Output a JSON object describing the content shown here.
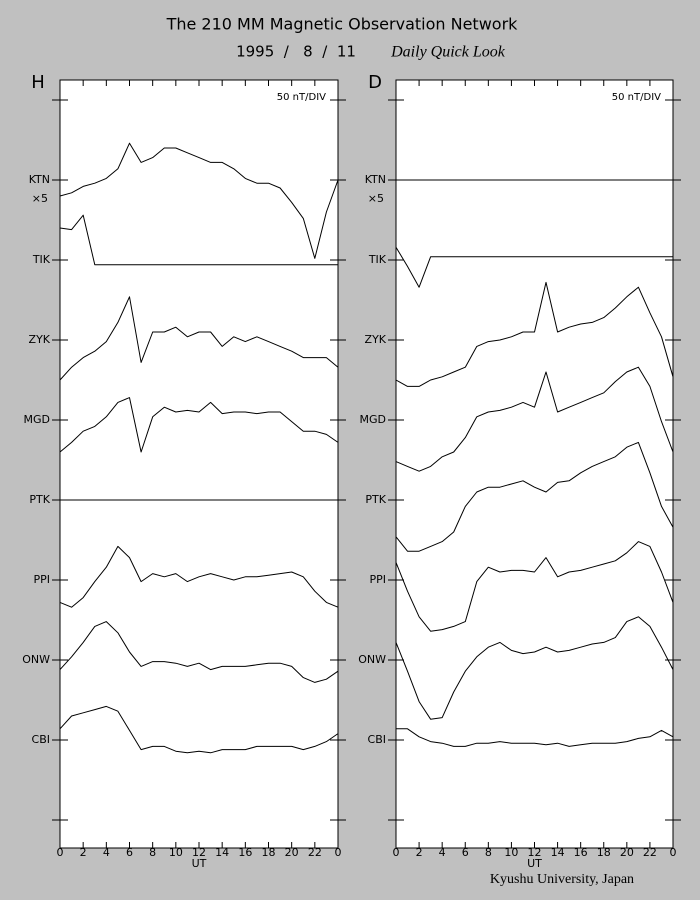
{
  "header": {
    "title": "The 210 MM Magnetic Observation Network",
    "date": "1995  /   8  /  11",
    "subtitle": "Daily Quick Look"
  },
  "footer": "Kyushu University, Japan",
  "chart_data": [
    {
      "type": "line",
      "panel": "H",
      "scale": "50 nT/DIV",
      "xlabel": "UT",
      "annotation": "×5",
      "x": [
        0,
        1,
        2,
        3,
        4,
        5,
        6,
        7,
        8,
        9,
        10,
        11,
        12,
        13,
        14,
        15,
        16,
        17,
        18,
        19,
        20,
        21,
        22,
        23,
        24
      ],
      "xlim": [
        0,
        24
      ],
      "xticks": [
        0,
        2,
        4,
        6,
        8,
        10,
        12,
        14,
        16,
        18,
        20,
        22,
        {
          "value": 24,
          "label": "0"
        }
      ],
      "ylim": [
        -17.5,
        462.5
      ],
      "yminor": [
        0,
        450
      ],
      "yticks": [
        {
          "value": 400,
          "label": "KTN"
        },
        {
          "value": 350,
          "label": "TIK"
        },
        {
          "value": 300,
          "label": "ZYK"
        },
        {
          "value": 250,
          "label": "MGD"
        },
        {
          "value": 200,
          "label": "PTK"
        },
        {
          "value": 150,
          "label": "PPI"
        },
        {
          "value": 100,
          "label": "ONW"
        },
        {
          "value": 50,
          "label": "CBI"
        }
      ],
      "series": [
        {
          "name": "KTN",
          "color": "#000000",
          "values": [
            -10,
            -8,
            -4,
            -2,
            1,
            7,
            23,
            11,
            14,
            20,
            20,
            17,
            14,
            11,
            11,
            7,
            1,
            -2,
            -2,
            -5,
            -14,
            -24,
            -49,
            -20,
            0
          ]
        },
        {
          "name": "TIK",
          "color": "#000000",
          "values": [
            20,
            19,
            28,
            -3,
            -3,
            -3,
            -3,
            -3,
            -3,
            -3,
            -3,
            -3,
            -3,
            -3,
            -3,
            -3,
            -3,
            -3,
            -3,
            -3,
            -3,
            -3,
            -3,
            -3,
            -3
          ]
        },
        {
          "name": "ZYK",
          "color": "#000000",
          "values": [
            -25,
            -17,
            -11,
            -7,
            -1,
            11,
            27,
            -14,
            5,
            5,
            8,
            2,
            5,
            5,
            -4,
            2,
            -1,
            2,
            -1,
            -4,
            -7,
            -11,
            -11,
            -11,
            -17
          ]
        },
        {
          "name": "MGD",
          "color": "#000000",
          "values": [
            -20,
            -14,
            -7,
            -4,
            2,
            11,
            14,
            -20,
            2,
            8,
            5,
            6,
            5,
            11,
            4,
            5,
            5,
            4,
            5,
            5,
            -1,
            -7,
            -7,
            -9,
            -14
          ]
        },
        {
          "name": "PTK",
          "color": "#000000",
          "values": [
            0,
            0,
            0,
            0,
            0,
            0,
            0,
            0,
            0,
            0,
            0,
            0,
            0,
            0,
            0,
            0,
            0,
            0,
            0,
            0,
            0,
            0,
            0,
            0,
            0
          ]
        },
        {
          "name": "PPI",
          "color": "#000000",
          "values": [
            -14,
            -17,
            -11,
            -1,
            8,
            21,
            14,
            -1,
            4,
            2,
            4,
            -1,
            2,
            4,
            2,
            0,
            2,
            2,
            3,
            4,
            5,
            2,
            -7,
            -14,
            -17
          ]
        },
        {
          "name": "ONW",
          "color": "#000000",
          "values": [
            -6,
            2,
            11,
            21,
            24,
            17,
            5,
            -4,
            -1,
            -1,
            -2,
            -4,
            -2,
            -6,
            -4,
            -4,
            -4,
            -3,
            -2,
            -2,
            -4,
            -11,
            -14,
            -12,
            -7
          ]
        },
        {
          "name": "CBI",
          "color": "#000000",
          "values": [
            7,
            15,
            17,
            19,
            21,
            18,
            6,
            -6,
            -4,
            -4,
            -7,
            -8,
            -7,
            -8,
            -6,
            -6,
            -6,
            -4,
            -4,
            -4,
            -4,
            -6,
            -4,
            -1,
            4
          ]
        }
      ]
    },
    {
      "type": "line",
      "panel": "D",
      "scale": "50 nT/DIV",
      "xlabel": "UT",
      "annotation": "×5",
      "x": [
        0,
        1,
        2,
        3,
        4,
        5,
        6,
        7,
        8,
        9,
        10,
        11,
        12,
        13,
        14,
        15,
        16,
        17,
        18,
        19,
        20,
        21,
        22,
        23,
        24
      ],
      "xlim": [
        0,
        24
      ],
      "xticks": [
        0,
        2,
        4,
        6,
        8,
        10,
        12,
        14,
        16,
        18,
        20,
        22,
        {
          "value": 24,
          "label": "0"
        }
      ],
      "ylim": [
        -17.5,
        462.5
      ],
      "yminor": [
        0,
        450
      ],
      "yticks": [
        {
          "value": 400,
          "label": "KTN"
        },
        {
          "value": 350,
          "label": "TIK"
        },
        {
          "value": 300,
          "label": "ZYK"
        },
        {
          "value": 250,
          "label": "MGD"
        },
        {
          "value": 200,
          "label": "PTK"
        },
        {
          "value": 150,
          "label": "PPI"
        },
        {
          "value": 100,
          "label": "ONW"
        },
        {
          "value": 50,
          "label": "CBI"
        }
      ],
      "series": [
        {
          "name": "KTN",
          "color": "#000000",
          "values": [
            0,
            0,
            0,
            0,
            0,
            0,
            0,
            0,
            0,
            0,
            0,
            0,
            0,
            0,
            0,
            0,
            0,
            0,
            0,
            0,
            0,
            0,
            0,
            0,
            0
          ]
        },
        {
          "name": "TIK",
          "color": "#000000",
          "values": [
            8,
            -4,
            -17,
            2,
            2,
            2,
            2,
            2,
            2,
            2,
            2,
            2,
            2,
            2,
            2,
            2,
            2,
            2,
            2,
            2,
            2,
            2,
            2,
            2,
            2
          ]
        },
        {
          "name": "ZYK",
          "color": "#000000",
          "values": [
            -25,
            -29,
            -29,
            -25,
            -23,
            -20,
            -17,
            -4,
            -1,
            0,
            2,
            5,
            5,
            36,
            5,
            8,
            10,
            11,
            14,
            20,
            27,
            33,
            17,
            2,
            -23
          ]
        },
        {
          "name": "MGD",
          "color": "#000000",
          "values": [
            -26,
            -29,
            -32,
            -29,
            -23,
            -20,
            -11,
            2,
            5,
            6,
            8,
            11,
            8,
            30,
            5,
            8,
            11,
            14,
            17,
            24,
            30,
            33,
            21,
            -1,
            -20
          ]
        },
        {
          "name": "PTK",
          "color": "#000000",
          "values": [
            -23,
            -32,
            -32,
            -29,
            -26,
            -20,
            -4,
            5,
            8,
            8,
            10,
            12,
            8,
            5,
            11,
            12,
            17,
            21,
            24,
            27,
            33,
            36,
            17,
            -4,
            -17
          ]
        },
        {
          "name": "PPI",
          "color": "#000000",
          "values": [
            11,
            -7,
            -23,
            -32,
            -31,
            -29,
            -26,
            -1,
            8,
            5,
            6,
            6,
            5,
            14,
            2,
            5,
            6,
            8,
            10,
            12,
            17,
            24,
            21,
            5,
            -14
          ]
        },
        {
          "name": "ONW",
          "color": "#000000",
          "values": [
            11,
            -7,
            -26,
            -37,
            -36,
            -20,
            -7,
            2,
            8,
            11,
            6,
            4,
            5,
            8,
            5,
            6,
            8,
            10,
            11,
            14,
            24,
            27,
            21,
            8,
            -6
          ]
        },
        {
          "name": "CBI",
          "color": "#000000",
          "values": [
            7,
            7,
            2,
            -1,
            -2,
            -4,
            -4,
            -2,
            -2,
            -1,
            -2,
            -2,
            -2,
            -3,
            -2,
            -4,
            -3,
            -2,
            -2,
            -2,
            -1,
            1,
            2,
            6,
            2
          ]
        }
      ]
    }
  ]
}
